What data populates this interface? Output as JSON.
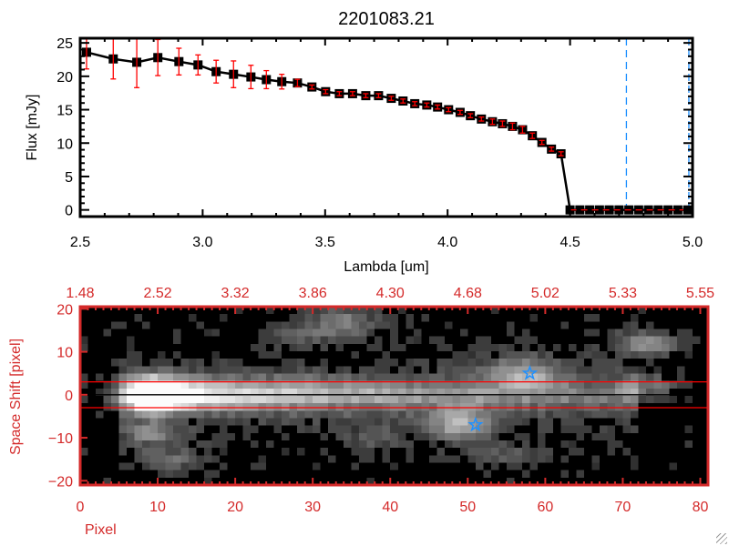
{
  "chart_data": [
    {
      "type": "line",
      "title": "2201083.21",
      "xlabel": "Lambda [um]",
      "ylabel": "Flux [mJy]",
      "xlim": [
        2.5,
        5.0
      ],
      "ylim": [
        -1,
        25.7
      ],
      "xticks": [
        "2.5",
        "3.0",
        "3.5",
        "4.0",
        "4.5",
        "5.0"
      ],
      "xtick_values": [
        2.5,
        3.0,
        3.5,
        4.0,
        4.5,
        5.0
      ],
      "yticks": [
        "0",
        "5",
        "10",
        "15",
        "20",
        "25"
      ],
      "ytick_values": [
        0,
        5,
        10,
        15,
        20,
        25
      ],
      "series": [
        {
          "name": "flux",
          "color": "#000000",
          "errcolor": "#ff0000",
          "x": [
            2.526,
            2.635,
            2.731,
            2.817,
            2.903,
            2.981,
            3.055,
            3.126,
            3.197,
            3.26,
            3.323,
            3.387,
            3.446,
            3.502,
            3.558,
            3.612,
            3.666,
            3.718,
            3.77,
            3.818,
            3.866,
            3.915,
            3.959,
            4.004,
            4.051,
            4.093,
            4.138,
            4.183,
            4.224,
            4.265,
            4.306,
            4.346,
            4.385,
            4.424,
            4.463,
            4.5,
            4.54,
            4.58,
            4.62,
            4.66,
            4.7,
            4.74,
            4.78,
            4.82,
            4.86,
            4.9,
            4.94,
            4.98
          ],
          "y": [
            23.6,
            22.6,
            22.1,
            22.8,
            22.2,
            21.7,
            20.7,
            20.3,
            19.9,
            19.5,
            19.2,
            19.0,
            18.4,
            17.7,
            17.4,
            17.4,
            17.1,
            17.1,
            16.7,
            16.3,
            15.9,
            15.7,
            15.4,
            15.0,
            14.6,
            14.1,
            13.6,
            13.2,
            12.9,
            12.5,
            12.0,
            11.1,
            10.1,
            9.1,
            8.4,
            0,
            0,
            0,
            0,
            0,
            0,
            0,
            0,
            0,
            0,
            0,
            0,
            0
          ],
          "err": [
            2.5,
            3.0,
            3.8,
            2.7,
            2.0,
            1.5,
            1.7,
            2.0,
            1.75,
            1.35,
            1.1,
            0.55,
            0.3,
            0.3,
            0.3,
            0.3,
            0.3,
            0.3,
            0.3,
            0.3,
            0.3,
            0.3,
            0.3,
            0.3,
            0.3,
            0.3,
            0.3,
            0.4,
            0.4,
            0.5,
            0.5,
            0.4,
            0.3,
            0.3,
            0.3,
            0,
            0,
            0,
            0,
            0,
            0,
            0,
            0,
            0,
            0,
            0,
            0,
            0
          ]
        }
      ],
      "vlines": [
        {
          "x": 4.73,
          "color": "#1e90ff",
          "style": "dashed"
        },
        {
          "x": 4.985,
          "color": "#1e90ff",
          "style": "dashed"
        }
      ],
      "hlines": [
        {
          "y": 0,
          "from": 4.5,
          "to": 5.0,
          "color": "#ff0000",
          "style": "dashed"
        }
      ]
    },
    {
      "type": "heatmap",
      "xlabel": "Pixel",
      "ylabel": "Space Shift [pixel]",
      "xlim": [
        0,
        81
      ],
      "ylim": [
        -21,
        20.5
      ],
      "xticks": [
        "0",
        "10",
        "20",
        "30",
        "40",
        "50",
        "60",
        "70",
        "80"
      ],
      "xtick_values": [
        0,
        10,
        20,
        30,
        40,
        50,
        60,
        70,
        80
      ],
      "top_xticks": [
        "1.48",
        "2.52",
        "3.32",
        "3.86",
        "4.30",
        "4.68",
        "5.02",
        "5.33",
        "5.55"
      ],
      "yticks": [
        "20",
        "10",
        "0",
        "−10",
        "−20"
      ],
      "ytick_values": [
        20,
        10,
        0,
        -10,
        -20
      ],
      "axis_color": "#d42a2a",
      "extraction_lines": [
        {
          "y": 3,
          "color": "#ff0000"
        },
        {
          "y": 0,
          "color": "#000000"
        },
        {
          "y": -3,
          "color": "#ff0000"
        }
      ],
      "markers": [
        {
          "x": 58,
          "y": 5,
          "symbol": "star",
          "color": "#1e90ff"
        },
        {
          "x": 51,
          "y": -7,
          "symbol": "star",
          "color": "#1e90ff"
        }
      ],
      "sources": [
        {
          "x": 9,
          "y": 0,
          "amp": 1.0,
          "sx": 3,
          "sy": 2.6
        },
        {
          "x": 9,
          "y": -9,
          "amp": 0.38,
          "sx": 2.5,
          "sy": 2
        },
        {
          "x": 12,
          "y": -15,
          "amp": 0.28,
          "sx": 3,
          "sy": 2
        },
        {
          "x": 34,
          "y": 17,
          "amp": 0.38,
          "sx": 3,
          "sy": 2.5
        },
        {
          "x": 28,
          "y": 14,
          "amp": 0.22,
          "sx": 3,
          "sy": 2
        },
        {
          "x": 49,
          "y": -7,
          "amp": 0.55,
          "sx": 3,
          "sy": 2.5
        },
        {
          "x": 57,
          "y": 5,
          "amp": 0.5,
          "sx": 3.5,
          "sy": 2.5
        },
        {
          "x": 73,
          "y": 12,
          "amp": 0.45,
          "sx": 3,
          "sy": 2
        },
        {
          "x": 73,
          "y": 2,
          "amp": 0.38,
          "sx": 2.5,
          "sy": 2
        },
        {
          "x": 38,
          "y": -10,
          "amp": 0.2,
          "sx": 3,
          "sy": 2
        },
        {
          "x": 55,
          "y": -14,
          "amp": 0.2,
          "sx": 4,
          "sy": 2
        }
      ]
    }
  ]
}
